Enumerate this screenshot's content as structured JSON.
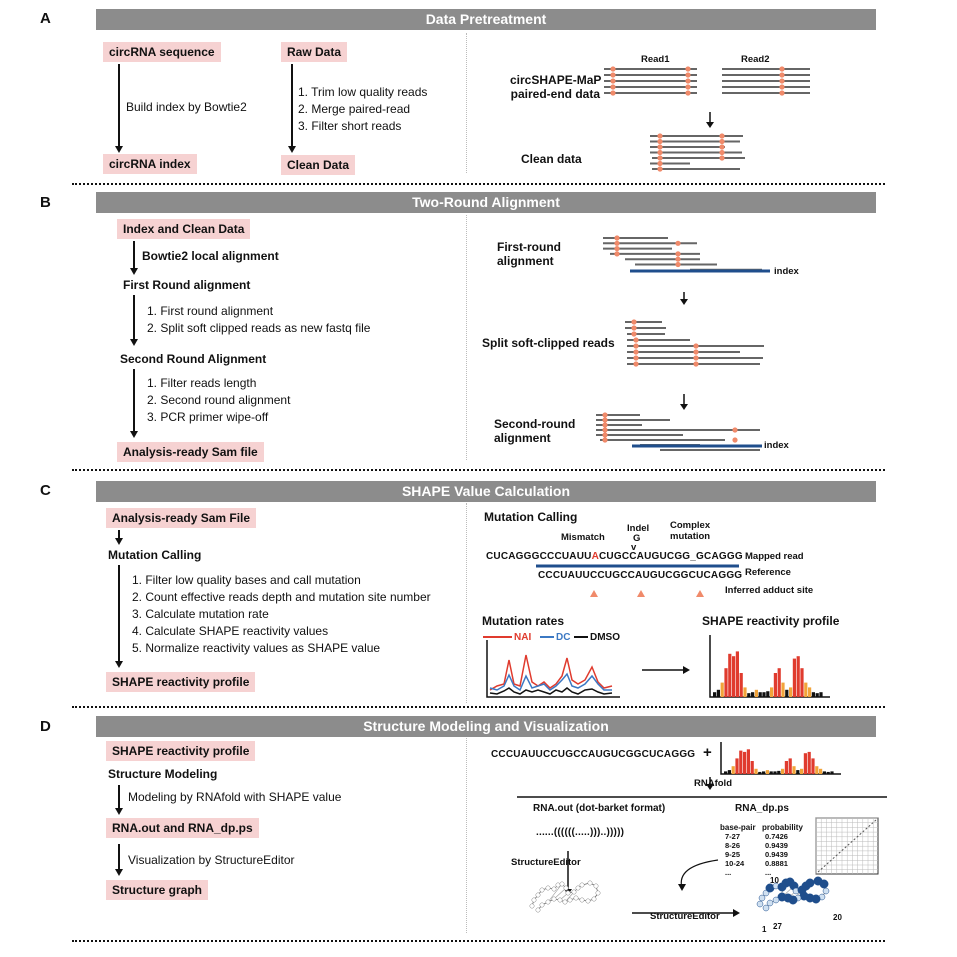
{
  "panels": {
    "A": {
      "letter": "A",
      "title": "Data Pretreatment",
      "circrna_sequence": "circRNA sequence",
      "build_index": "Build index by Bowtie2",
      "circrna_index": "circRNA index",
      "raw_data": "Raw Data",
      "steps": [
        "1.  Trim low quality reads",
        "2.  Merge paired-read",
        "3.  Filter short reads"
      ],
      "clean_data": "Clean Data",
      "read1": "Read1",
      "read2": "Read2",
      "paired_end_l1": "circSHAPE-MaP",
      "paired_end_l2": "paired-end data",
      "clean_data_label": "Clean data"
    },
    "B": {
      "letter": "B",
      "title": "Two-Round Alignment",
      "index_clean": "Index and Clean Data",
      "bowtie_local": "Bowtie2 local alignment",
      "first_round": "First Round alignment",
      "steps1": [
        "1.  First round alignment",
        "2.  Split soft clipped reads as new fastq file"
      ],
      "second_round": "Second Round Alignment",
      "steps2": [
        "1.  Filter reads length",
        "2.  Second round alignment",
        "3.  PCR primer wipe-off"
      ],
      "sam_file": "Analysis-ready Sam file",
      "first_round_r_l1": "First-round",
      "first_round_r_l2": "alignment",
      "index1": "index",
      "split_reads": "Split soft-clipped reads",
      "second_round_r_l1": "Second-round",
      "second_round_r_l2": "alignment",
      "index2": "index"
    },
    "C": {
      "letter": "C",
      "title": "SHAPE Value Calculation",
      "sam_file": "Analysis-ready Sam File",
      "mutation_calling": "Mutation Calling",
      "steps": [
        "1.  Filter low quality bases and call mutation",
        "2.  Count effective reads depth and mutation site number",
        "3.  Calculate mutation rate",
        "4.  Calculate SHAPE reactivity values",
        "5.  Normalize reactivity values as SHAPE value"
      ],
      "reactivity_profile": "SHAPE reactivity profile",
      "mc_title": "Mutation Calling",
      "mismatch": "Mismatch",
      "indel": "Indel",
      "indel_g": "G",
      "complex_l1": "Complex",
      "complex_l2": "mutation",
      "read_pre": "CUCAGGGCCCUAUU",
      "read_mut": "A",
      "read_post": "CUGCCAUGUCGG_GCAGGG",
      "mapped_read": "Mapped read",
      "reference_label": "Reference",
      "reference_seq": "CCCUAUUCCUGCCAUGUCGGCUCAGGG",
      "inferred_site": "Inferred adduct site",
      "mutation_rates": "Mutation rates",
      "legend_nai": "NAI",
      "legend_dc": "DC",
      "legend_dmso": "DMSO",
      "shape_profile_title": "SHAPE reactivity profile",
      "colors": {
        "nai": "#e03b2e",
        "dc": "#3b78c3",
        "dmso": "#111111",
        "bar_red": "#e03b2e",
        "bar_orange": "#f2a43a",
        "bar_black": "#111111"
      }
    },
    "D": {
      "letter": "D",
      "title": "Structure Modeling and Visualization",
      "reactivity_profile": "SHAPE reactivity profile",
      "structure_modeling": "Structure Modeling",
      "rnafold_step": "Modeling by RNAfold with SHAPE value",
      "rna_out": "RNA.out and RNA_dp.ps",
      "vis_step": "Visualization by StructureEditor",
      "structure_graph": "Structure graph",
      "sequence": "CCCUAUUCCUGCCAUGUCGGCUCAGGG",
      "plus": "+",
      "rnafold": "RNAfold",
      "rna_out_label": "RNA.out (dot-barket format)",
      "rna_dp_label": "RNA_dp.ps",
      "dot_bracket": "......((((((.....)))..)))))",
      "bp_header": "base-pair",
      "prob_header": "probability",
      "bp_rows": [
        [
          "7-27",
          "0.7426"
        ],
        [
          "8-26",
          "0.9439"
        ],
        [
          "9-25",
          "0.9439"
        ],
        [
          "10-24",
          "0.8881"
        ],
        [
          "...",
          "..."
        ]
      ],
      "structure_editor_1": "StructureEditor",
      "structure_editor_2": "StructureEditor",
      "num_10": "10",
      "num_1": "1",
      "num_27": "27",
      "num_20": "20"
    }
  }
}
